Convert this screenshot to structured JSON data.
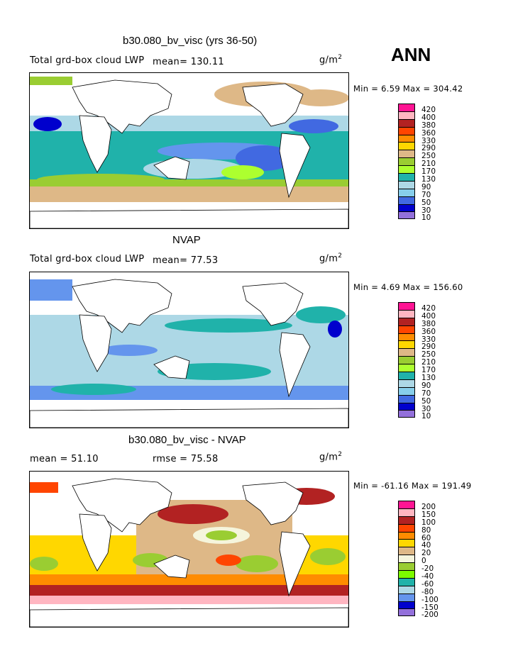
{
  "season": "ANN",
  "units": "g/m",
  "units_exp": "2",
  "panels": [
    {
      "title": "b30.080_bv_visc (yrs 36-50)",
      "field_label": "Total grd-box cloud LWP",
      "stat_text": "mean=  130.11",
      "minmax": "Min =    6.59 Max = 304.42",
      "levels": [
        "420",
        "400",
        "380",
        "360",
        "330",
        "290",
        "250",
        "210",
        "170",
        "130",
        "90",
        "70",
        "50",
        "30",
        "10"
      ]
    },
    {
      "title": "NVAP",
      "field_label": "Total grd-box cloud LWP",
      "stat_text": "mean=   77.53",
      "minmax": "Min =    4.69 Max = 156.60",
      "levels": [
        "420",
        "400",
        "380",
        "360",
        "330",
        "290",
        "250",
        "210",
        "170",
        "130",
        "90",
        "70",
        "50",
        "30",
        "10"
      ]
    },
    {
      "title": "b30.080_bv_visc - NVAP",
      "field_label": "mean =   51.10",
      "stat_text": "rmse =   75.58",
      "minmax": "Min = -61.16 Max = 191.49",
      "levels": [
        "200",
        "150",
        "100",
        "80",
        "60",
        "40",
        "20",
        "0",
        "-20",
        "-40",
        "-60",
        "-80",
        "-100",
        "-150",
        "-200"
      ]
    }
  ],
  "colors": {
    "abs": [
      "#ff1493",
      "#ffb6c1",
      "#b22222",
      "#ff4500",
      "#ff8c00",
      "#ffd700",
      "#deb887",
      "#9acd32",
      "#adff2f",
      "#20b2aa",
      "#add8e6",
      "#87ceeb",
      "#4169e1",
      "#0000cd",
      "#9370db"
    ],
    "diff": [
      "#ff1493",
      "#ffb6c1",
      "#b22222",
      "#ff4500",
      "#ff8c00",
      "#ffd700",
      "#deb887",
      "#f5f5dc",
      "#9acd32",
      "#7cfc00",
      "#20b2aa",
      "#add8e6",
      "#6495ed",
      "#0000cd",
      "#9370db"
    ]
  }
}
